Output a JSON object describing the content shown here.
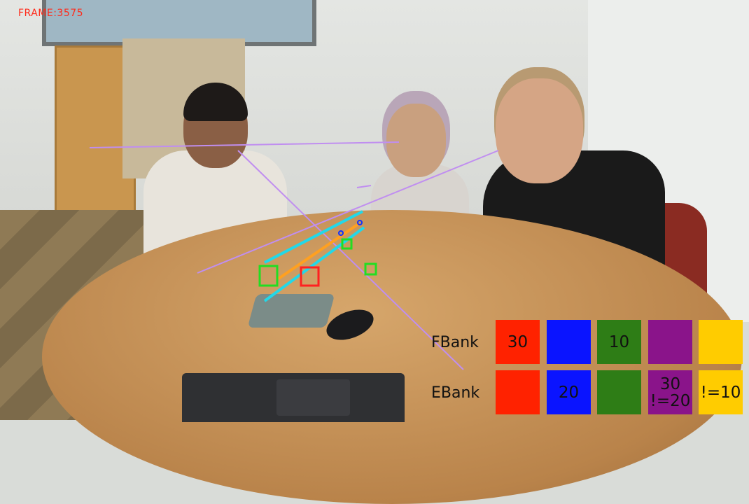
{
  "overlay": {
    "frame_label": "FRAME:3575",
    "frame_color": "#ff2a1a"
  },
  "banks": {
    "fbank": {
      "label": "FBank",
      "cells": [
        {
          "color": "#ff2200",
          "text": "30"
        },
        {
          "color": "#0a14ff",
          "text": ""
        },
        {
          "color": "#2e7d16",
          "text": "10"
        },
        {
          "color": "#8a148a",
          "text": ""
        },
        {
          "color": "#ffcc00",
          "text": ""
        }
      ]
    },
    "ebank": {
      "label": "EBank",
      "cells": [
        {
          "color": "#ff2200",
          "text": ""
        },
        {
          "color": "#0a14ff",
          "text": "20"
        },
        {
          "color": "#2e7d16",
          "text": ""
        },
        {
          "color": "#8a148a",
          "text": "30\n!=20"
        },
        {
          "color": "#ffcc00",
          "text": "!=10"
        }
      ]
    }
  },
  "annotation_colors": {
    "gaze": "#c08ef0",
    "cyan": "#22d8e8",
    "orange": "#ffa020",
    "green_box": "#22dd22",
    "red_box": "#ff2020"
  }
}
